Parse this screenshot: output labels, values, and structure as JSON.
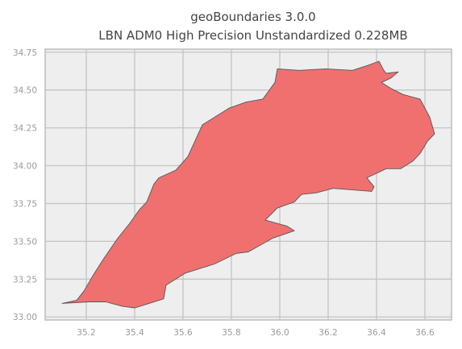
{
  "title": {
    "line1": "geoBoundaries 3.0.0",
    "line2": "LBN ADM0 High Precision Unstandardized 0.228MB"
  },
  "chart_data": {
    "type": "map",
    "title": "geoBoundaries 3.0.0 LBN ADM0 High Precision Unstandardized 0.228MB",
    "xlim": [
      35.03,
      36.71
    ],
    "ylim": [
      32.98,
      34.77
    ],
    "grid": true,
    "x_ticks": [
      {
        "value": 35.2,
        "label": "35.2"
      },
      {
        "value": 35.4,
        "label": "35.4"
      },
      {
        "value": 35.6,
        "label": "35.6"
      },
      {
        "value": 35.8,
        "label": "35.8"
      },
      {
        "value": 36.0,
        "label": "36.0"
      },
      {
        "value": 36.2,
        "label": "36.2"
      },
      {
        "value": 36.4,
        "label": "36.4"
      },
      {
        "value": 36.6,
        "label": "36.6"
      }
    ],
    "y_ticks": [
      {
        "value": 33.0,
        "label": "33.00"
      },
      {
        "value": 33.25,
        "label": "33.25"
      },
      {
        "value": 33.5,
        "label": "33.50"
      },
      {
        "value": 33.75,
        "label": "33.75"
      },
      {
        "value": 34.0,
        "label": "34.00"
      },
      {
        "value": 34.25,
        "label": "34.25"
      },
      {
        "value": 34.5,
        "label": "34.50"
      },
      {
        "value": 34.75,
        "label": "34.75"
      }
    ],
    "fill_color": "#f07070",
    "edge_color": "#555555",
    "boundary_lonlat": [
      [
        35.1,
        33.09
      ],
      [
        35.16,
        33.11
      ],
      [
        35.19,
        33.17
      ],
      [
        35.23,
        33.28
      ],
      [
        35.27,
        33.38
      ],
      [
        35.33,
        33.52
      ],
      [
        35.38,
        33.62
      ],
      [
        35.42,
        33.71
      ],
      [
        35.45,
        33.76
      ],
      [
        35.48,
        33.88
      ],
      [
        35.5,
        33.92
      ],
      [
        35.57,
        33.97
      ],
      [
        35.62,
        34.06
      ],
      [
        35.64,
        34.13
      ],
      [
        35.68,
        34.27
      ],
      [
        35.73,
        34.32
      ],
      [
        35.79,
        34.38
      ],
      [
        35.86,
        34.42
      ],
      [
        35.93,
        34.44
      ],
      [
        35.98,
        34.55
      ],
      [
        35.99,
        34.64
      ],
      [
        36.08,
        34.63
      ],
      [
        36.19,
        34.64
      ],
      [
        36.3,
        34.63
      ],
      [
        36.36,
        34.66
      ],
      [
        36.41,
        34.69
      ],
      [
        36.43,
        34.63
      ],
      [
        36.44,
        34.61
      ],
      [
        36.49,
        34.62
      ],
      [
        36.46,
        34.58
      ],
      [
        36.42,
        34.55
      ],
      [
        36.46,
        34.51
      ],
      [
        36.51,
        34.47
      ],
      [
        36.58,
        34.44
      ],
      [
        36.62,
        34.32
      ],
      [
        36.64,
        34.21
      ],
      [
        36.61,
        34.16
      ],
      [
        36.58,
        34.08
      ],
      [
        36.55,
        34.03
      ],
      [
        36.5,
        33.98
      ],
      [
        36.44,
        33.98
      ],
      [
        36.36,
        33.92
      ],
      [
        36.39,
        33.86
      ],
      [
        36.38,
        33.83
      ],
      [
        36.3,
        33.84
      ],
      [
        36.22,
        33.85
      ],
      [
        36.15,
        33.82
      ],
      [
        36.09,
        33.81
      ],
      [
        36.06,
        33.76
      ],
      [
        35.99,
        33.72
      ],
      [
        35.94,
        33.64
      ],
      [
        36.03,
        33.6
      ],
      [
        36.06,
        33.57
      ],
      [
        35.97,
        33.52
      ],
      [
        35.87,
        33.43
      ],
      [
        35.82,
        33.42
      ],
      [
        35.73,
        33.35
      ],
      [
        35.61,
        33.29
      ],
      [
        35.53,
        33.21
      ],
      [
        35.52,
        33.12
      ],
      [
        35.46,
        33.09
      ],
      [
        35.4,
        33.06
      ],
      [
        35.35,
        33.07
      ],
      [
        35.28,
        33.1
      ],
      [
        35.21,
        33.1
      ],
      [
        35.1,
        33.09
      ]
    ]
  }
}
